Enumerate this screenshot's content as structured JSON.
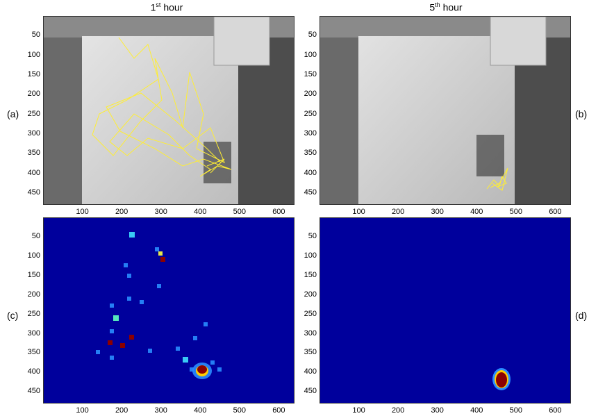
{
  "titles": {
    "left": {
      "num": "1",
      "sup": "st",
      "text": " hour"
    },
    "right": {
      "num": "5",
      "sup": "th",
      "text": " hour"
    }
  },
  "labels": {
    "a": "(a)",
    "b": "(b)",
    "c": "(c)",
    "d": "(d)"
  },
  "axes": {
    "y_ticks": [
      "50",
      "100",
      "150",
      "200",
      "250",
      "300",
      "350",
      "400",
      "450"
    ],
    "x_ticks": [
      "100",
      "200",
      "300",
      "400",
      "500",
      "600"
    ]
  },
  "colors": {
    "heatmap_bg": "#00009c",
    "trajectory": "#ffee33",
    "hot": "#8b0000"
  }
}
